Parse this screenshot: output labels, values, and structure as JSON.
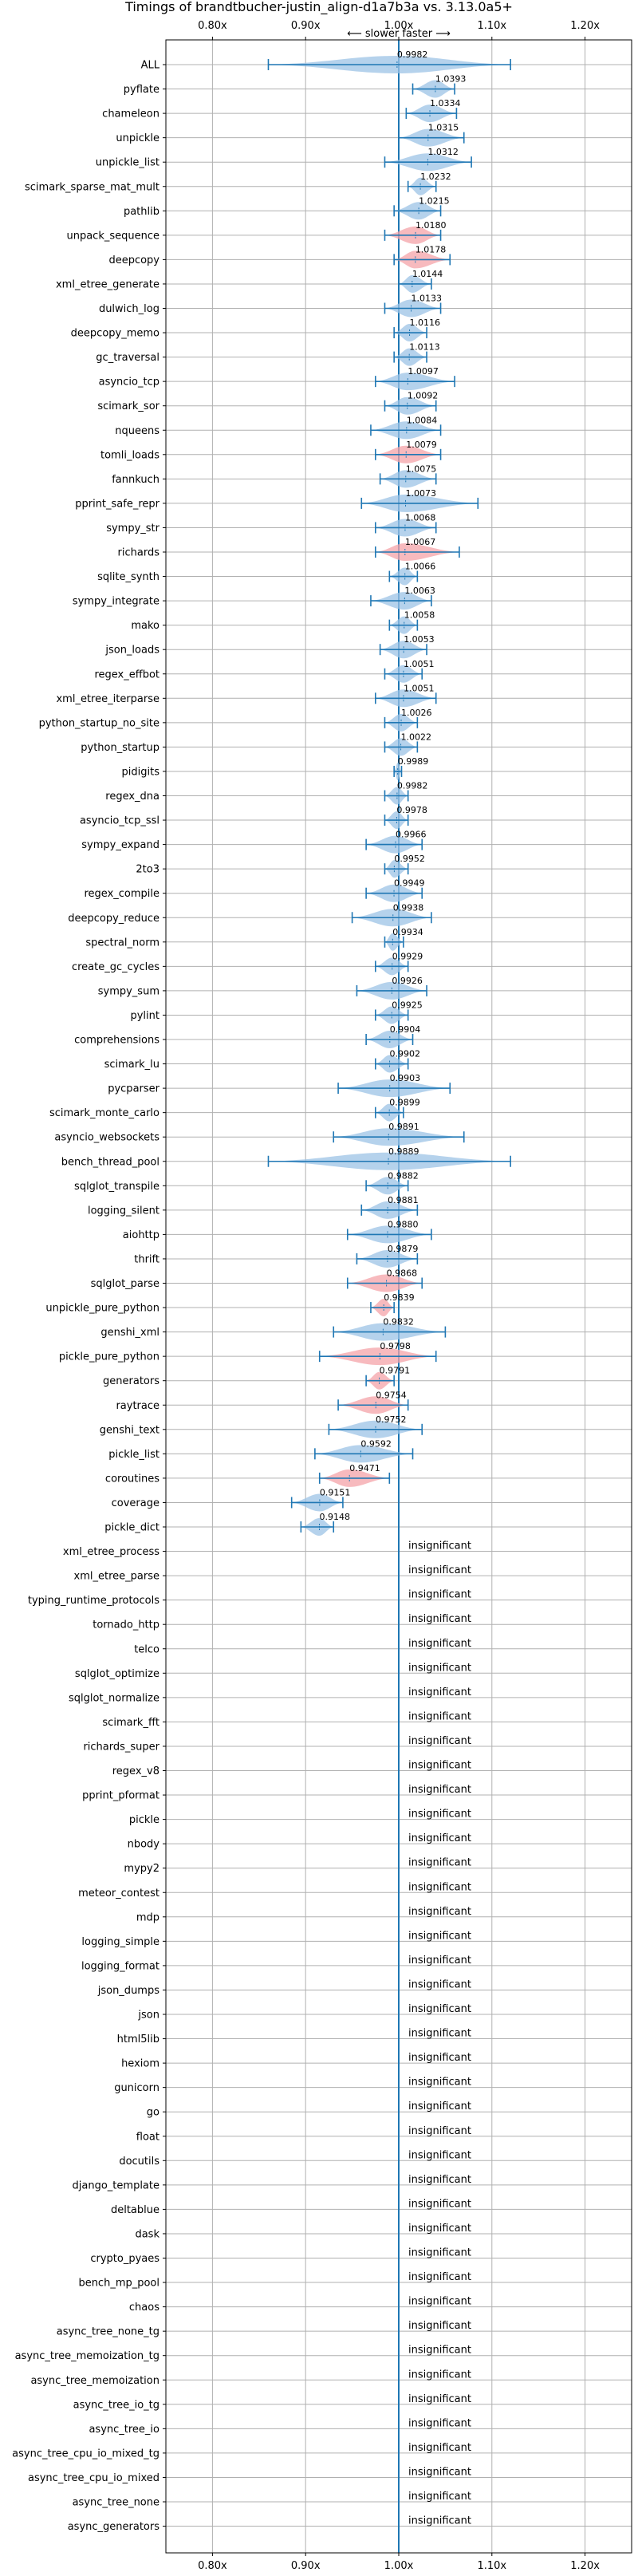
{
  "chart_data": {
    "type": "violin",
    "title": "Timings of brandtbucher-justin_align-d1a7b3a vs. 3.13.0a5+",
    "direction_label": "⟵ slower    faster ⟶",
    "xlim": [
      0.75,
      1.25
    ],
    "x_ticks": [
      0.8,
      0.9,
      1.0,
      1.1,
      1.2
    ],
    "x_tick_labels": [
      "0.80x",
      "0.90x",
      "1.00x",
      "1.10x",
      "1.20x"
    ],
    "grid": true,
    "reference_line": 1.0,
    "colors": {
      "faster": "#9cc3e6",
      "slower": "#f4a3a8",
      "line": "#1f77b4"
    },
    "insignificant_text": "insignificant",
    "benchmarks": [
      {
        "name": "ALL",
        "value": 0.9982,
        "label": "0.9982",
        "lo": 0.86,
        "hi": 1.12,
        "sig": "faster"
      },
      {
        "name": "pyflate",
        "value": 1.0393,
        "label": "1.0393",
        "lo": 1.015,
        "hi": 1.06,
        "sig": "faster"
      },
      {
        "name": "chameleon",
        "value": 1.0334,
        "label": "1.0334",
        "lo": 1.008,
        "hi": 1.062,
        "sig": "faster"
      },
      {
        "name": "unpickle",
        "value": 1.0315,
        "label": "1.0315",
        "lo": 1.0,
        "hi": 1.07,
        "sig": "faster"
      },
      {
        "name": "unpickle_list",
        "value": 1.0312,
        "label": "1.0312",
        "lo": 0.985,
        "hi": 1.078,
        "sig": "faster"
      },
      {
        "name": "scimark_sparse_mat_mult",
        "value": 1.0232,
        "label": "1.0232",
        "lo": 1.01,
        "hi": 1.04,
        "sig": "faster"
      },
      {
        "name": "pathlib",
        "value": 1.0215,
        "label": "1.0215",
        "lo": 0.995,
        "hi": 1.045,
        "sig": "faster"
      },
      {
        "name": "unpack_sequence",
        "value": 1.018,
        "label": "1.0180",
        "lo": 0.985,
        "hi": 1.045,
        "sig": "slower"
      },
      {
        "name": "deepcopy",
        "value": 1.0178,
        "label": "1.0178",
        "lo": 0.995,
        "hi": 1.055,
        "sig": "slower"
      },
      {
        "name": "xml_etree_generate",
        "value": 1.0144,
        "label": "1.0144",
        "lo": 1.0,
        "hi": 1.035,
        "sig": "faster"
      },
      {
        "name": "dulwich_log",
        "value": 1.0133,
        "label": "1.0133",
        "lo": 0.985,
        "hi": 1.045,
        "sig": "faster"
      },
      {
        "name": "deepcopy_memo",
        "value": 1.0116,
        "label": "1.0116",
        "lo": 0.995,
        "hi": 1.03,
        "sig": "faster"
      },
      {
        "name": "gc_traversal",
        "value": 1.0113,
        "label": "1.0113",
        "lo": 0.995,
        "hi": 1.03,
        "sig": "faster"
      },
      {
        "name": "asyncio_tcp",
        "value": 1.0097,
        "label": "1.0097",
        "lo": 0.975,
        "hi": 1.06,
        "sig": "faster"
      },
      {
        "name": "scimark_sor",
        "value": 1.0092,
        "label": "1.0092",
        "lo": 0.985,
        "hi": 1.04,
        "sig": "faster"
      },
      {
        "name": "nqueens",
        "value": 1.0084,
        "label": "1.0084",
        "lo": 0.97,
        "hi": 1.045,
        "sig": "faster"
      },
      {
        "name": "tomli_loads",
        "value": 1.0079,
        "label": "1.0079",
        "lo": 0.975,
        "hi": 1.045,
        "sig": "slower"
      },
      {
        "name": "fannkuch",
        "value": 1.0075,
        "label": "1.0075",
        "lo": 0.98,
        "hi": 1.04,
        "sig": "faster"
      },
      {
        "name": "pprint_safe_repr",
        "value": 1.0073,
        "label": "1.0073",
        "lo": 0.96,
        "hi": 1.085,
        "sig": "faster"
      },
      {
        "name": "sympy_str",
        "value": 1.0068,
        "label": "1.0068",
        "lo": 0.975,
        "hi": 1.04,
        "sig": "faster"
      },
      {
        "name": "richards",
        "value": 1.0067,
        "label": "1.0067",
        "lo": 0.975,
        "hi": 1.065,
        "sig": "slower"
      },
      {
        "name": "sqlite_synth",
        "value": 1.0066,
        "label": "1.0066",
        "lo": 0.99,
        "hi": 1.02,
        "sig": "faster"
      },
      {
        "name": "sympy_integrate",
        "value": 1.0063,
        "label": "1.0063",
        "lo": 0.97,
        "hi": 1.035,
        "sig": "faster"
      },
      {
        "name": "mako",
        "value": 1.0058,
        "label": "1.0058",
        "lo": 0.99,
        "hi": 1.02,
        "sig": "faster"
      },
      {
        "name": "json_loads",
        "value": 1.0053,
        "label": "1.0053",
        "lo": 0.98,
        "hi": 1.03,
        "sig": "faster"
      },
      {
        "name": "regex_effbot",
        "value": 1.0051,
        "label": "1.0051",
        "lo": 0.985,
        "hi": 1.025,
        "sig": "faster"
      },
      {
        "name": "xml_etree_iterparse",
        "value": 1.0051,
        "label": "1.0051",
        "lo": 0.975,
        "hi": 1.04,
        "sig": "faster"
      },
      {
        "name": "python_startup_no_site",
        "value": 1.0026,
        "label": "1.0026",
        "lo": 0.985,
        "hi": 1.02,
        "sig": "faster"
      },
      {
        "name": "python_startup",
        "value": 1.0022,
        "label": "1.0022",
        "lo": 0.985,
        "hi": 1.02,
        "sig": "faster"
      },
      {
        "name": "pidigits",
        "value": 0.9989,
        "label": "0.9989",
        "lo": 0.995,
        "hi": 1.003,
        "sig": "faster"
      },
      {
        "name": "regex_dna",
        "value": 0.9982,
        "label": "0.9982",
        "lo": 0.985,
        "hi": 1.01,
        "sig": "faster"
      },
      {
        "name": "asyncio_tcp_ssl",
        "value": 0.9978,
        "label": "0.9978",
        "lo": 0.985,
        "hi": 1.01,
        "sig": "faster"
      },
      {
        "name": "sympy_expand",
        "value": 0.9966,
        "label": "0.9966",
        "lo": 0.965,
        "hi": 1.025,
        "sig": "faster"
      },
      {
        "name": "2to3",
        "value": 0.9952,
        "label": "0.9952",
        "lo": 0.985,
        "hi": 1.01,
        "sig": "faster"
      },
      {
        "name": "regex_compile",
        "value": 0.9949,
        "label": "0.9949",
        "lo": 0.965,
        "hi": 1.025,
        "sig": "faster"
      },
      {
        "name": "deepcopy_reduce",
        "value": 0.9938,
        "label": "0.9938",
        "lo": 0.95,
        "hi": 1.035,
        "sig": "faster"
      },
      {
        "name": "spectral_norm",
        "value": 0.9934,
        "label": "0.9934",
        "lo": 0.985,
        "hi": 1.005,
        "sig": "faster"
      },
      {
        "name": "create_gc_cycles",
        "value": 0.9929,
        "label": "0.9929",
        "lo": 0.975,
        "hi": 1.01,
        "sig": "faster"
      },
      {
        "name": "sympy_sum",
        "value": 0.9926,
        "label": "0.9926",
        "lo": 0.955,
        "hi": 1.03,
        "sig": "faster"
      },
      {
        "name": "pylint",
        "value": 0.9925,
        "label": "0.9925",
        "lo": 0.975,
        "hi": 1.01,
        "sig": "faster"
      },
      {
        "name": "comprehensions",
        "value": 0.9904,
        "label": "0.9904",
        "lo": 0.965,
        "hi": 1.015,
        "sig": "faster"
      },
      {
        "name": "scimark_lu",
        "value": 0.9902,
        "label": "0.9902",
        "lo": 0.975,
        "hi": 1.01,
        "sig": "faster"
      },
      {
        "name": "pycparser",
        "value": 0.9903,
        "label": "0.9903",
        "lo": 0.935,
        "hi": 1.055,
        "sig": "faster"
      },
      {
        "name": "scimark_monte_carlo",
        "value": 0.9899,
        "label": "0.9899",
        "lo": 0.975,
        "hi": 1.005,
        "sig": "faster"
      },
      {
        "name": "asyncio_websockets",
        "value": 0.9891,
        "label": "0.9891",
        "lo": 0.93,
        "hi": 1.07,
        "sig": "faster"
      },
      {
        "name": "bench_thread_pool",
        "value": 0.9889,
        "label": "0.9889",
        "lo": 0.86,
        "hi": 1.12,
        "sig": "faster"
      },
      {
        "name": "sqlglot_transpile",
        "value": 0.9882,
        "label": "0.9882",
        "lo": 0.965,
        "hi": 1.01,
        "sig": "faster"
      },
      {
        "name": "logging_silent",
        "value": 0.9881,
        "label": "0.9881",
        "lo": 0.96,
        "hi": 1.02,
        "sig": "faster"
      },
      {
        "name": "aiohttp",
        "value": 0.988,
        "label": "0.9880",
        "lo": 0.945,
        "hi": 1.035,
        "sig": "faster"
      },
      {
        "name": "thrift",
        "value": 0.9879,
        "label": "0.9879",
        "lo": 0.955,
        "hi": 1.02,
        "sig": "faster"
      },
      {
        "name": "sqlglot_parse",
        "value": 0.9868,
        "label": "0.9868",
        "lo": 0.945,
        "hi": 1.025,
        "sig": "slower"
      },
      {
        "name": "unpickle_pure_python",
        "value": 0.9839,
        "label": "0.9839",
        "lo": 0.97,
        "hi": 0.995,
        "sig": "slower"
      },
      {
        "name": "genshi_xml",
        "value": 0.9832,
        "label": "0.9832",
        "lo": 0.93,
        "hi": 1.05,
        "sig": "faster"
      },
      {
        "name": "pickle_pure_python",
        "value": 0.9798,
        "label": "0.9798",
        "lo": 0.915,
        "hi": 1.04,
        "sig": "slower"
      },
      {
        "name": "generators",
        "value": 0.9791,
        "label": "0.9791",
        "lo": 0.965,
        "hi": 0.995,
        "sig": "slower"
      },
      {
        "name": "raytrace",
        "value": 0.9754,
        "label": "0.9754",
        "lo": 0.935,
        "hi": 1.01,
        "sig": "slower"
      },
      {
        "name": "genshi_text",
        "value": 0.9752,
        "label": "0.9752",
        "lo": 0.925,
        "hi": 1.025,
        "sig": "faster"
      },
      {
        "name": "pickle_list",
        "value": 0.9592,
        "label": "0.9592",
        "lo": 0.91,
        "hi": 1.015,
        "sig": "faster"
      },
      {
        "name": "coroutines",
        "value": 0.9471,
        "label": "0.9471",
        "lo": 0.915,
        "hi": 0.99,
        "sig": "slower"
      },
      {
        "name": "coverage",
        "value": 0.9151,
        "label": "0.9151",
        "lo": 0.885,
        "hi": 0.94,
        "sig": "faster"
      },
      {
        "name": "pickle_dict",
        "value": 0.9148,
        "label": "0.9148",
        "lo": 0.895,
        "hi": 0.93,
        "sig": "faster"
      },
      {
        "name": "xml_etree_process",
        "insignificant": true
      },
      {
        "name": "xml_etree_parse",
        "insignificant": true
      },
      {
        "name": "typing_runtime_protocols",
        "insignificant": true
      },
      {
        "name": "tornado_http",
        "insignificant": true
      },
      {
        "name": "telco",
        "insignificant": true
      },
      {
        "name": "sqlglot_optimize",
        "insignificant": true
      },
      {
        "name": "sqlglot_normalize",
        "insignificant": true
      },
      {
        "name": "scimark_fft",
        "insignificant": true
      },
      {
        "name": "richards_super",
        "insignificant": true
      },
      {
        "name": "regex_v8",
        "insignificant": true
      },
      {
        "name": "pprint_pformat",
        "insignificant": true
      },
      {
        "name": "pickle",
        "insignificant": true
      },
      {
        "name": "nbody",
        "insignificant": true
      },
      {
        "name": "mypy2",
        "insignificant": true
      },
      {
        "name": "meteor_contest",
        "insignificant": true
      },
      {
        "name": "mdp",
        "insignificant": true
      },
      {
        "name": "logging_simple",
        "insignificant": true
      },
      {
        "name": "logging_format",
        "insignificant": true
      },
      {
        "name": "json_dumps",
        "insignificant": true
      },
      {
        "name": "json",
        "insignificant": true
      },
      {
        "name": "html5lib",
        "insignificant": true
      },
      {
        "name": "hexiom",
        "insignificant": true
      },
      {
        "name": "gunicorn",
        "insignificant": true
      },
      {
        "name": "go",
        "insignificant": true
      },
      {
        "name": "float",
        "insignificant": true
      },
      {
        "name": "docutils",
        "insignificant": true
      },
      {
        "name": "django_template",
        "insignificant": true
      },
      {
        "name": "deltablue",
        "insignificant": true
      },
      {
        "name": "dask",
        "insignificant": true
      },
      {
        "name": "crypto_pyaes",
        "insignificant": true
      },
      {
        "name": "bench_mp_pool",
        "insignificant": true
      },
      {
        "name": "chaos",
        "insignificant": true
      },
      {
        "name": "async_tree_none_tg",
        "insignificant": true
      },
      {
        "name": "async_tree_memoization_tg",
        "insignificant": true
      },
      {
        "name": "async_tree_memoization",
        "insignificant": true
      },
      {
        "name": "async_tree_io_tg",
        "insignificant": true
      },
      {
        "name": "async_tree_io",
        "insignificant": true
      },
      {
        "name": "async_tree_cpu_io_mixed_tg",
        "insignificant": true
      },
      {
        "name": "async_tree_cpu_io_mixed",
        "insignificant": true
      },
      {
        "name": "async_tree_none",
        "insignificant": true
      },
      {
        "name": "async_generators",
        "insignificant": true
      }
    ]
  }
}
